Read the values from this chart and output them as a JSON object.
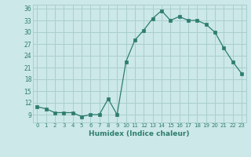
{
  "x": [
    0,
    1,
    2,
    3,
    4,
    5,
    6,
    7,
    8,
    9,
    10,
    11,
    12,
    13,
    14,
    15,
    16,
    17,
    18,
    19,
    20,
    21,
    22,
    23
  ],
  "y": [
    11,
    10.5,
    9.5,
    9.5,
    9.5,
    8.5,
    9,
    9,
    13,
    9,
    22.5,
    28,
    30.5,
    33.5,
    35.5,
    33,
    34,
    33,
    33,
    32,
    30,
    26,
    22.5,
    19.5
  ],
  "line_color": "#2e7d6e",
  "marker": "s",
  "marker_size": 2.2,
  "bg_color": "#cce8e8",
  "grid_color": "#aacece",
  "xlabel": "Humidex (Indice chaleur)",
  "xlim": [
    -0.5,
    23.5
  ],
  "ylim": [
    7,
    37
  ],
  "yticks": [
    9,
    12,
    15,
    18,
    21,
    24,
    27,
    30,
    33,
    36
  ],
  "xtick_labels": [
    "0",
    "1",
    "2",
    "3",
    "4",
    "5",
    "6",
    "7",
    "8",
    "9",
    "10",
    "11",
    "12",
    "13",
    "14",
    "15",
    "16",
    "17",
    "18",
    "19",
    "20",
    "21",
    "22",
    "23"
  ]
}
